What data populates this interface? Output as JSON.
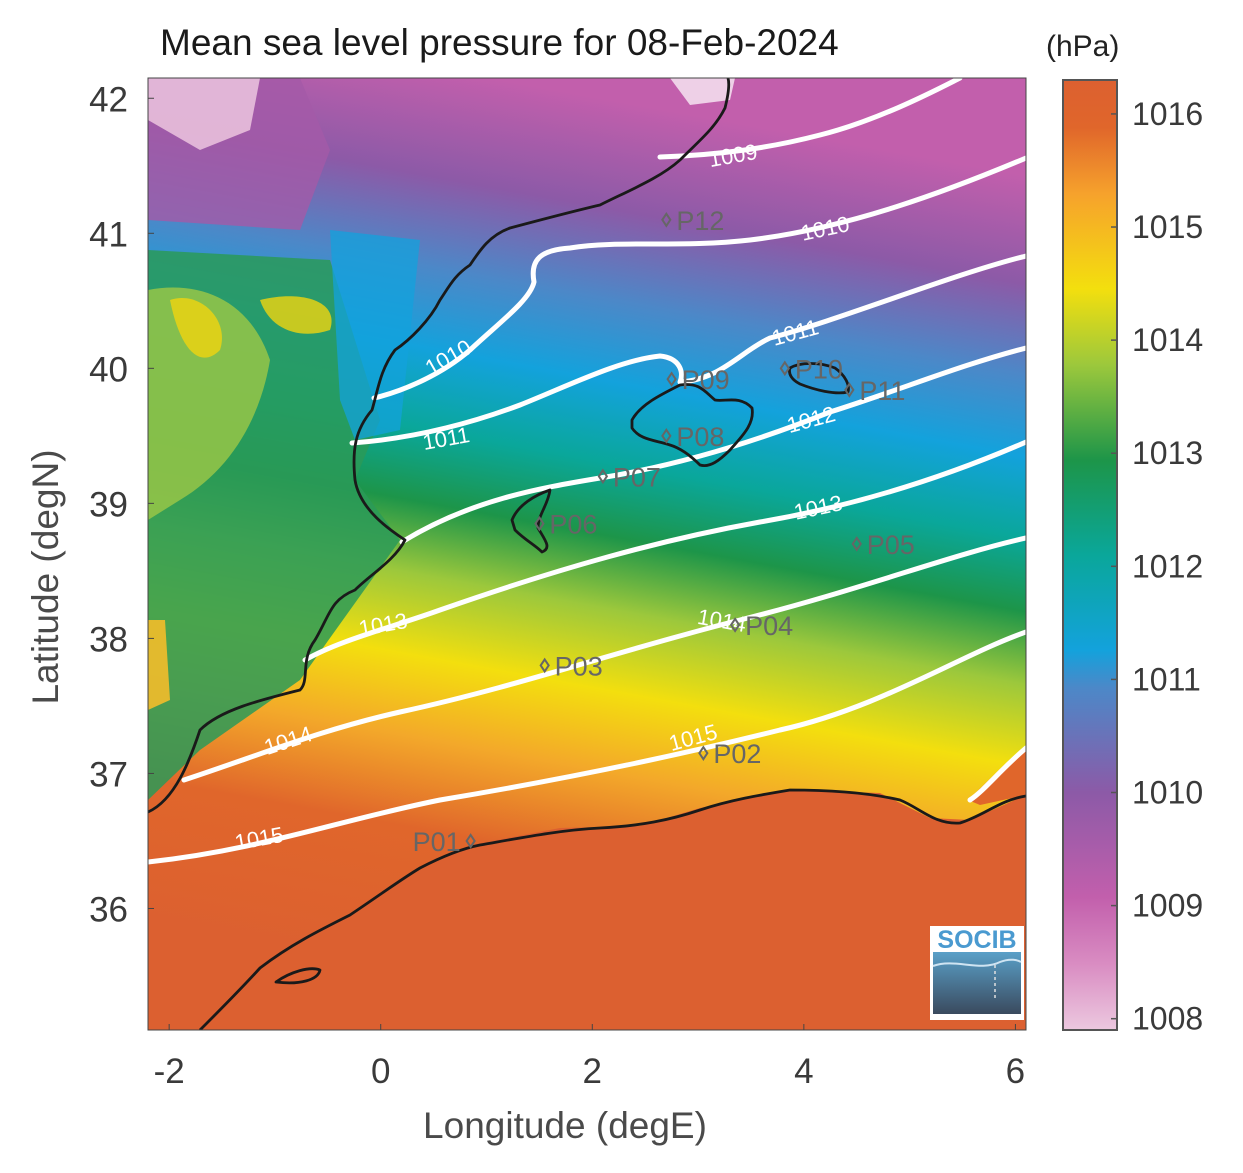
{
  "title": "Mean sea level pressure for 08-Feb-2024",
  "units": "(hPa)",
  "x_axis": {
    "label": "Longitude (degE)",
    "ticks": [
      "-2",
      "0",
      "2",
      "4",
      "6"
    ],
    "range": [
      -2.2,
      6.1
    ]
  },
  "y_axis": {
    "label": "Latitude (degN)",
    "ticks": [
      "36",
      "37",
      "38",
      "39",
      "40",
      "41",
      "42"
    ],
    "range": [
      35.1,
      42.15
    ]
  },
  "colorbar": {
    "range": [
      1007.9,
      1016.3
    ],
    "ticks": [
      "1008",
      "1009",
      "1010",
      "1011",
      "1012",
      "1013",
      "1014",
      "1015",
      "1016"
    ],
    "colors": [
      "#ecc8df",
      "#c25fac",
      "#8c5aa7",
      "#4c88c8",
      "#13a2dc",
      "#0aa79a",
      "#1d9549",
      "#9cc83c",
      "#f3df0e",
      "#f6a22c",
      "#e0662b",
      "#dc6030"
    ]
  },
  "contours": [
    {
      "label": "1009"
    },
    {
      "label": "1010"
    },
    {
      "label": "1011"
    },
    {
      "label": "1012"
    },
    {
      "label": "1013"
    },
    {
      "label": "1014"
    },
    {
      "label": "1015"
    }
  ],
  "points": [
    {
      "label": "P01",
      "lon": 0.85,
      "lat": 36.5
    },
    {
      "label": "P02",
      "lon": 3.05,
      "lat": 37.15
    },
    {
      "label": "P03",
      "lon": 1.55,
      "lat": 37.8
    },
    {
      "label": "P04",
      "lon": 3.35,
      "lat": 38.1
    },
    {
      "label": "P05",
      "lon": 4.5,
      "lat": 38.7
    },
    {
      "label": "P06",
      "lon": 1.5,
      "lat": 38.85
    },
    {
      "label": "P07",
      "lon": 2.1,
      "lat": 39.2
    },
    {
      "label": "P08",
      "lon": 2.7,
      "lat": 39.5
    },
    {
      "label": "P09",
      "lon": 2.75,
      "lat": 39.92
    },
    {
      "label": "P10",
      "lon": 3.82,
      "lat": 40.0
    },
    {
      "label": "P11",
      "lon": 4.43,
      "lat": 39.84
    },
    {
      "label": "P12",
      "lon": 2.7,
      "lat": 41.1
    }
  ],
  "logo": {
    "text": "SOCIB"
  },
  "colors": {
    "contour": "#ffffff",
    "coastline": "#1a1a1a",
    "marker": "#666666"
  }
}
